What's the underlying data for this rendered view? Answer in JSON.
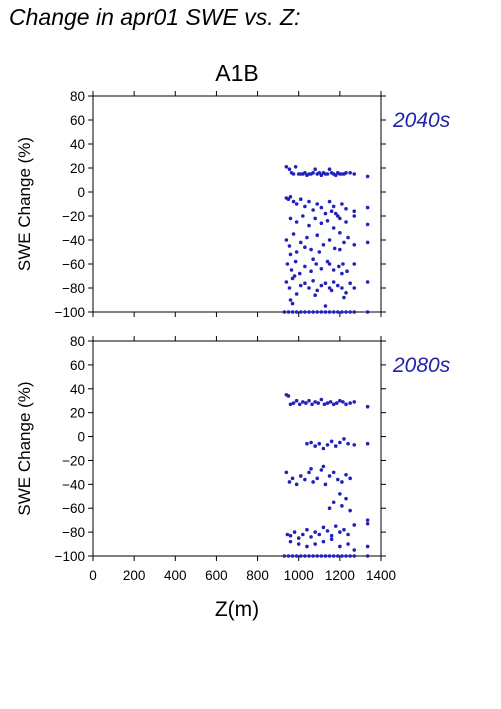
{
  "page_title": "Change in apr01 SWE vs. Z:",
  "colors": {
    "points": "#2222bb",
    "period_label": "#2222aa",
    "axes": "#000000"
  },
  "chart_data": [
    {
      "type": "scatter",
      "title": "A1B",
      "period_label": "2040s",
      "xlabel": "",
      "ylabel": "SWE Change (%)",
      "xlim": [
        0,
        1400
      ],
      "ylim": [
        -100,
        80
      ],
      "xticks": [
        0,
        200,
        400,
        600,
        800,
        1000,
        1200,
        1400
      ],
      "yticks": [
        -100,
        -80,
        -60,
        -40,
        -20,
        0,
        20,
        40,
        60,
        80
      ],
      "grid": false,
      "series": [
        {
          "x": [
            940,
            955,
            965,
            975,
            985,
            1000,
            1010,
            1020,
            1030,
            1040,
            1050,
            1060,
            1070,
            1080,
            1090,
            1100,
            1110,
            1120,
            1130,
            1140,
            1150,
            1160,
            1170,
            1180,
            1190,
            1200,
            1210,
            1220,
            1230,
            1250,
            1270,
            1335,
            940,
            950,
            960,
            975,
            990,
            1010,
            1030,
            1050,
            1070,
            1090,
            1110,
            1130,
            1150,
            1170,
            1190,
            1210,
            1230,
            1270,
            1335,
            960,
            990,
            1020,
            1050,
            1080,
            1110,
            1140,
            1170,
            1200,
            1230,
            1160,
            1180,
            1270,
            1335,
            940,
            955,
            975,
            990,
            1010,
            1040,
            1060,
            1090,
            1120,
            1150,
            1175,
            1200,
            1220,
            1240,
            960,
            1030,
            1100,
            1200,
            1270,
            1335,
            945,
            965,
            985,
            1005,
            1030,
            1060,
            1085,
            1110,
            1140,
            1170,
            1195,
            1215,
            1235,
            980,
            1070,
            1150,
            1210,
            1270,
            940,
            955,
            970,
            990,
            1010,
            1030,
            1050,
            1070,
            1090,
            1110,
            1130,
            1150,
            1170,
            1190,
            1210,
            1230,
            1250,
            1270,
            1335,
            960,
            1080,
            1160,
            1220,
            930,
            950,
            970,
            990,
            1010,
            1030,
            1050,
            1070,
            1090,
            1110,
            1130,
            1150,
            1170,
            1190,
            1210,
            1230,
            1250,
            1270,
            1335,
            970,
            1130
          ],
          "y": [
            21,
            19,
            16,
            15,
            21,
            15,
            15,
            15,
            16,
            14,
            15,
            15,
            16,
            19,
            15,
            16,
            14,
            16,
            15,
            15,
            19,
            16,
            15,
            14,
            16,
            15,
            15,
            15,
            16,
            16,
            15,
            13,
            -5,
            -6,
            -4,
            -8,
            -10,
            -6,
            -12,
            -8,
            -15,
            -10,
            -13,
            -18,
            -8,
            -12,
            -20,
            -10,
            -14,
            -16,
            -13,
            -22,
            -25,
            -20,
            -28,
            -22,
            -26,
            -24,
            -30,
            -22,
            -25,
            -16,
            -18,
            -20,
            -27,
            -40,
            -45,
            -35,
            -50,
            -42,
            -38,
            -48,
            -36,
            -44,
            -40,
            -47,
            -34,
            -42,
            -38,
            -52,
            -46,
            -50,
            -48,
            -44,
            -42,
            -60,
            -65,
            -58,
            -68,
            -62,
            -66,
            -60,
            -64,
            -58,
            -65,
            -62,
            -60,
            -66,
            -70,
            -56,
            -60,
            -68,
            -60,
            -75,
            -80,
            -72,
            -85,
            -78,
            -76,
            -80,
            -74,
            -82,
            -78,
            -76,
            -80,
            -75,
            -78,
            -80,
            -84,
            -76,
            -80,
            -75,
            -90,
            -86,
            -82,
            -88,
            -100,
            -100,
            -100,
            -100,
            -100,
            -100,
            -100,
            -100,
            -100,
            -100,
            -100,
            -100,
            -100,
            -100,
            -100,
            -100,
            -100,
            -100,
            -100,
            -93,
            -95
          ]
        }
      ]
    },
    {
      "type": "scatter",
      "title": "",
      "period_label": "2080s",
      "xlabel": "Z(m)",
      "ylabel": "SWE Change (%)",
      "xlim": [
        0,
        1400
      ],
      "ylim": [
        -100,
        80
      ],
      "xticks": [
        0,
        200,
        400,
        600,
        800,
        1000,
        1200,
        1400
      ],
      "yticks": [
        -100,
        -80,
        -60,
        -40,
        -20,
        0,
        20,
        40,
        60,
        80
      ],
      "grid": false,
      "series": [
        {
          "x": [
            940,
            950,
            960,
            975,
            990,
            1005,
            1020,
            1035,
            1050,
            1065,
            1080,
            1095,
            1110,
            1125,
            1140,
            1155,
            1170,
            1185,
            1200,
            1215,
            1230,
            1250,
            1270,
            1335,
            1040,
            1060,
            1080,
            1100,
            1120,
            1140,
            1160,
            1180,
            1200,
            1220,
            1240,
            1270,
            1335,
            940,
            955,
            970,
            990,
            1010,
            1030,
            1050,
            1070,
            1090,
            1110,
            1130,
            1150,
            1170,
            1190,
            1210,
            1230,
            1250,
            1060,
            1120,
            1170,
            1200,
            1230,
            1150,
            1210,
            1250,
            1335,
            945,
            960,
            980,
            1000,
            1020,
            1040,
            1060,
            1080,
            1100,
            1120,
            1140,
            1160,
            1180,
            1200,
            1220,
            1240,
            1270,
            1335,
            960,
            1000,
            1040,
            1080,
            1120,
            1160,
            1200,
            1240,
            1270,
            1335,
            930,
            950,
            970,
            990,
            1010,
            1030,
            1050,
            1070,
            1090,
            1110,
            1130,
            1150,
            1170,
            1190,
            1210,
            1230,
            1250,
            1270,
            1335
          ],
          "y": [
            35,
            34,
            27,
            28,
            30,
            27,
            29,
            28,
            30,
            27,
            29,
            28,
            31,
            27,
            28,
            29,
            27,
            28,
            30,
            29,
            27,
            28,
            29,
            25,
            -6,
            -5,
            -8,
            -6,
            -10,
            -7,
            -4,
            -8,
            -5,
            -2,
            -6,
            -7,
            -6,
            -30,
            -38,
            -35,
            -40,
            -33,
            -36,
            -30,
            -38,
            -35,
            -28,
            -40,
            -33,
            -30,
            -36,
            -38,
            -32,
            -35,
            -27,
            -25,
            -55,
            -48,
            -52,
            -60,
            -58,
            -62,
            -70,
            -82,
            -83,
            -80,
            -85,
            -82,
            -78,
            -84,
            -80,
            -82,
            -76,
            -79,
            -83,
            -75,
            -80,
            -78,
            -82,
            -74,
            -73,
            -88,
            -90,
            -92,
            -90,
            -88,
            -86,
            -92,
            -90,
            -95,
            -92,
            -100,
            -100,
            -100,
            -100,
            -100,
            -100,
            -100,
            -100,
            -100,
            -100,
            -100,
            -100,
            -100,
            -100,
            -100,
            -100,
            -100,
            -100,
            -100
          ]
        }
      ]
    }
  ]
}
